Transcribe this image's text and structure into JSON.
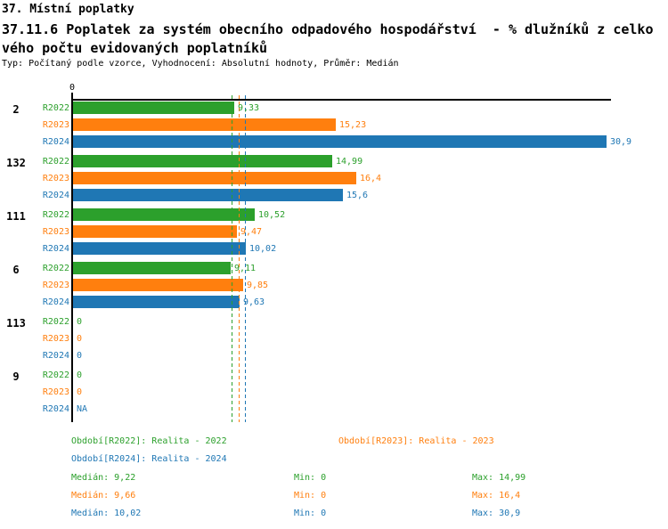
{
  "header": {
    "line1": "37. Místní poplatky",
    "line2": "37.11.6 Poplatek za systém obecního odpadového hospodářství  - % dlužníků z celko",
    "line3": "vého počtu evidovaných poplatníků",
    "line4": "Typ: Počítaný podle vzorce, Vyhodnocení: Absolutní hodnoty, Průměr: Medián"
  },
  "colors": {
    "r2022": "#2ca02c",
    "r2023": "#ff7f0e",
    "r2024": "#1f77b4",
    "axis": "#000000"
  },
  "chart_data": {
    "type": "bar",
    "orientation": "horizontal",
    "x_axis": {
      "tick_label": "0",
      "xlim": [
        0,
        31.2
      ],
      "grid": false
    },
    "categories": [
      "2",
      "132",
      "111",
      "6",
      "113",
      "9"
    ],
    "series": [
      {
        "name": "R2022",
        "color": "#2ca02c",
        "values": [
          9.33,
          14.99,
          10.52,
          9.11,
          0,
          0
        ],
        "value_labels": [
          "9,33",
          "14,99",
          "10,52",
          "9,11",
          "0",
          "0"
        ]
      },
      {
        "name": "R2023",
        "color": "#ff7f0e",
        "values": [
          15.23,
          16.4,
          9.47,
          9.85,
          0,
          0
        ],
        "value_labels": [
          "15,23",
          "16,4",
          "9,47",
          "9,85",
          "0",
          "0"
        ]
      },
      {
        "name": "R2024",
        "color": "#1f77b4",
        "values": [
          30.9,
          15.6,
          10.02,
          9.63,
          0,
          null
        ],
        "value_labels": [
          "30,9",
          "15,6",
          "10,02",
          "9,63",
          "0",
          "NA"
        ]
      }
    ],
    "median_lines": [
      {
        "series": "R2022",
        "value": 9.22,
        "color": "#2ca02c"
      },
      {
        "series": "R2023",
        "value": 9.66,
        "color": "#ff7f0e"
      },
      {
        "series": "R2024",
        "value": 10.02,
        "color": "#1f77b4"
      }
    ]
  },
  "legend": {
    "items": [
      {
        "label": "Období[R2022]: Realita - 2022",
        "color": "#2ca02c"
      },
      {
        "label": "Období[R2023]: Realita - 2023",
        "color": "#ff7f0e"
      },
      {
        "label": "Období[R2024]: Realita - 2024",
        "color": "#1f77b4"
      }
    ]
  },
  "stats": {
    "rows": [
      {
        "median": "Medián: 9,22",
        "min": "Min: 0",
        "max": "Max: 14,99",
        "color": "#2ca02c"
      },
      {
        "median": "Medián: 9,66",
        "min": "Min: 0",
        "max": "Max: 16,4",
        "color": "#ff7f0e"
      },
      {
        "median": "Medián: 10,02",
        "min": "Min: 0",
        "max": "Max: 30,9",
        "color": "#1f77b4"
      }
    ]
  }
}
